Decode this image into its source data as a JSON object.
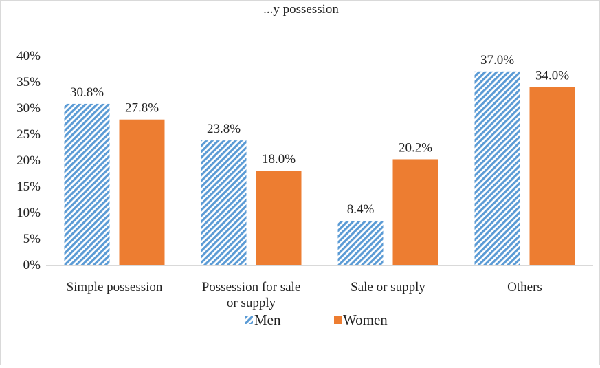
{
  "chart_data": {
    "type": "bar",
    "title": "...y possession",
    "categories": [
      [
        "Simple possession"
      ],
      [
        "Possession for sale",
        "or supply"
      ],
      [
        "Sale or supply"
      ],
      [
        "Others"
      ]
    ],
    "series": [
      {
        "name": "Men",
        "values": [
          30.8,
          23.8,
          8.4,
          37.0
        ],
        "labels": [
          "30.8%",
          "23.8%",
          "8.4%",
          "37.0%"
        ],
        "color": "#5b9bd5",
        "pattern": "diagonal-stripes"
      },
      {
        "name": "Women",
        "values": [
          27.8,
          18.0,
          20.2,
          34.0
        ],
        "labels": [
          "27.8%",
          "18.0%",
          "20.2%",
          "34.0%"
        ],
        "color": "#ed7d31",
        "pattern": "solid"
      }
    ],
    "y_ticks": [
      "0%",
      "5%",
      "10%",
      "15%",
      "20%",
      "25%",
      "30%",
      "35%",
      "40%"
    ],
    "ylim": [
      0,
      40
    ],
    "grid": false,
    "legend_position": "bottom"
  }
}
